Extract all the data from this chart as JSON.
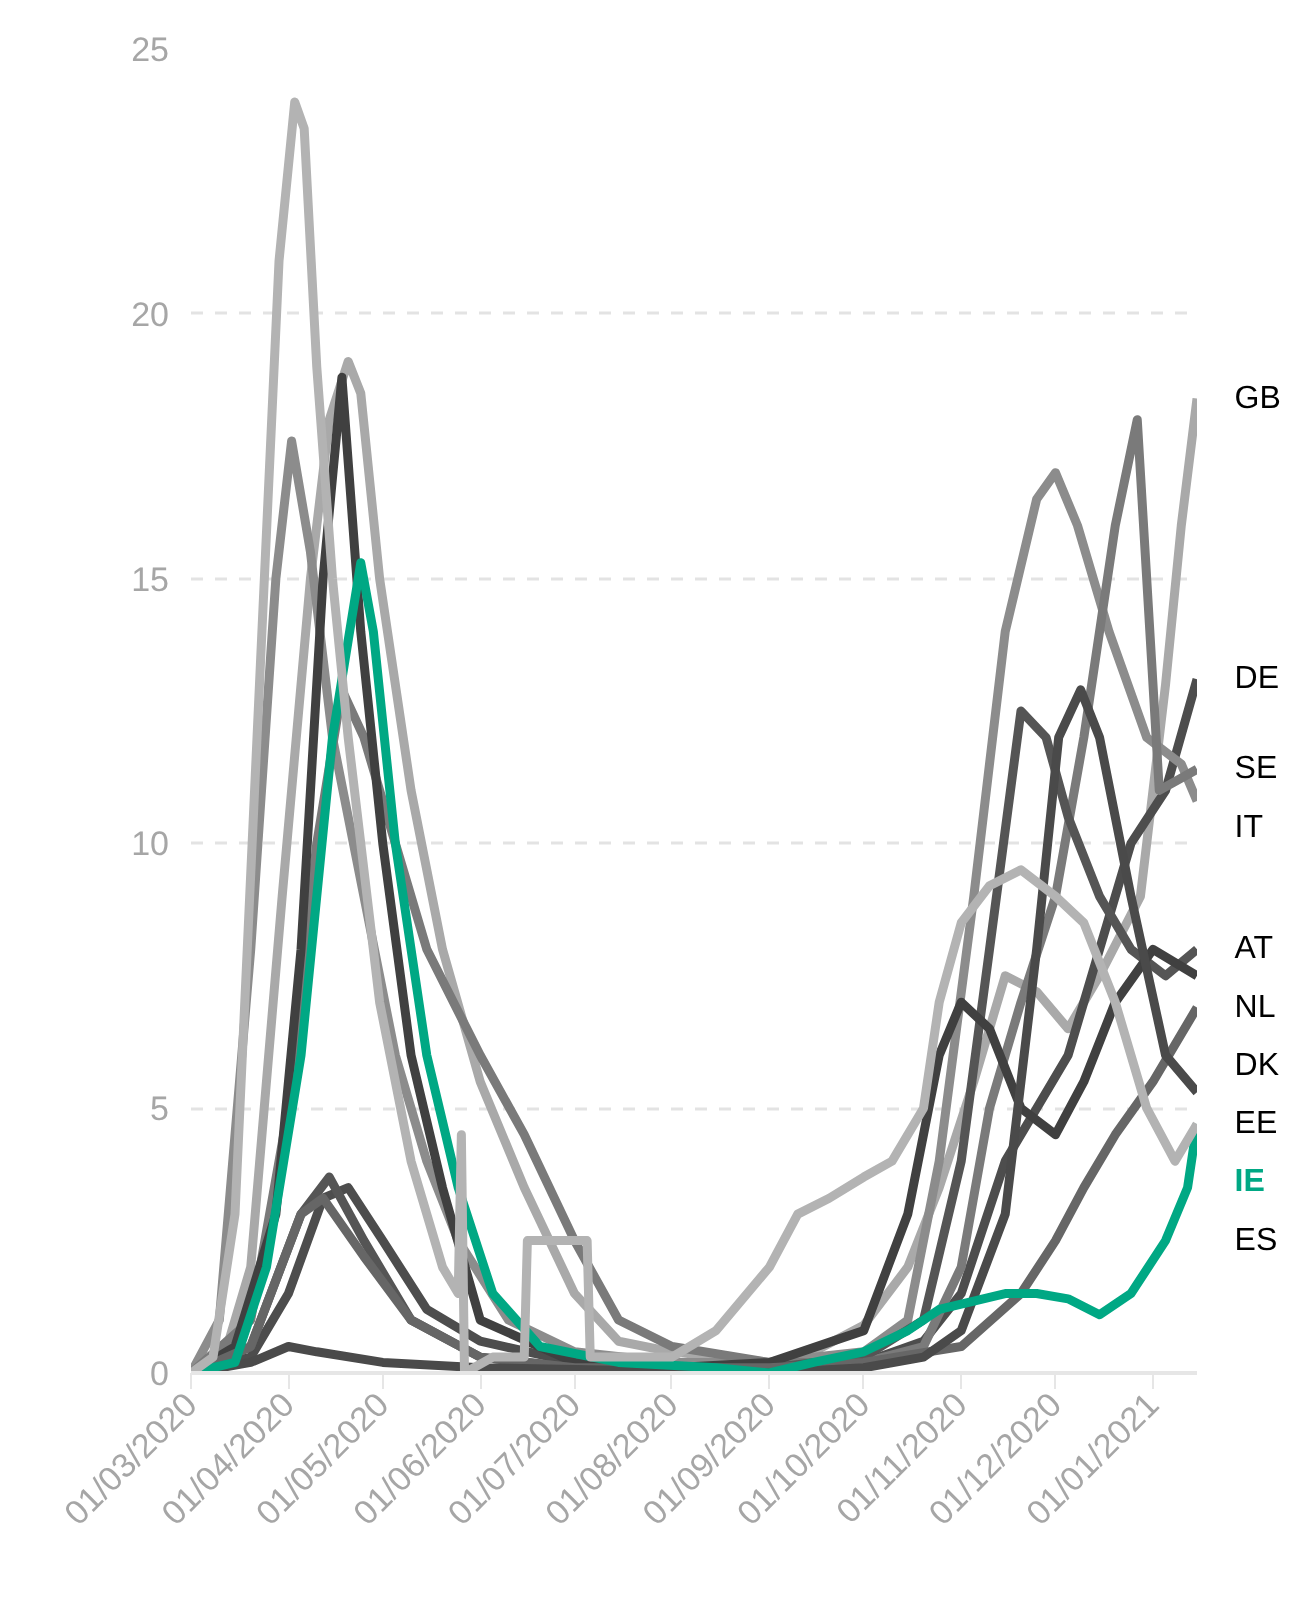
{
  "chart_data": {
    "type": "line",
    "grid": "y",
    "marker": "none",
    "line_style": "solid",
    "xlim": [
      "2020-03-01",
      "2021-01-15"
    ],
    "ylim": [
      0,
      25
    ],
    "yticks": [
      0,
      5,
      10,
      15,
      20,
      25
    ],
    "xticks": [
      {
        "value": "2020-03-01",
        "label": "01/03/2020"
      },
      {
        "value": "2020-04-01",
        "label": "01/04/2020"
      },
      {
        "value": "2020-05-01",
        "label": "01/05/2020"
      },
      {
        "value": "2020-06-01",
        "label": "01/06/2020"
      },
      {
        "value": "2020-07-01",
        "label": "01/07/2020"
      },
      {
        "value": "2020-08-01",
        "label": "01/08/2020"
      },
      {
        "value": "2020-09-01",
        "label": "01/09/2020"
      },
      {
        "value": "2020-10-01",
        "label": "01/10/2020"
      },
      {
        "value": "2020-11-01",
        "label": "01/11/2020"
      },
      {
        "value": "2020-12-01",
        "label": "01/12/2020"
      },
      {
        "value": "2021-01-01",
        "label": "01/01/2021"
      }
    ],
    "series": [
      {
        "name": "GB",
        "color": "#a9a9a9",
        "x": [
          "2020-03-01",
          "2020-03-10",
          "2020-03-20",
          "2020-03-30",
          "2020-04-08",
          "2020-04-14",
          "2020-04-20",
          "2020-04-24",
          "2020-04-30",
          "2020-05-10",
          "2020-05-20",
          "2020-06-01",
          "2020-06-15",
          "2020-07-01",
          "2020-07-15",
          "2020-08-01",
          "2020-09-01",
          "2020-09-15",
          "2020-10-01",
          "2020-10-15",
          "2020-10-25",
          "2020-11-05",
          "2020-11-15",
          "2020-11-25",
          "2020-12-05",
          "2020-12-15",
          "2020-12-28",
          "2021-01-05",
          "2021-01-10",
          "2021-01-15"
        ],
        "values": [
          0,
          0,
          2,
          9,
          15,
          18,
          19.1,
          18.5,
          15,
          11,
          8,
          5.5,
          3.5,
          1.5,
          0.6,
          0.4,
          0.2,
          0.4,
          0.9,
          2,
          3.5,
          5.5,
          7.5,
          7.2,
          6.5,
          7.5,
          9,
          13,
          16,
          18.4
        ]
      },
      {
        "name": "DE",
        "color": "#4d4d4d",
        "x": [
          "2020-03-01",
          "2020-03-20",
          "2020-04-01",
          "2020-04-12",
          "2020-04-20",
          "2020-05-01",
          "2020-05-15",
          "2020-06-01",
          "2020-07-01",
          "2020-08-01",
          "2020-09-01",
          "2020-10-01",
          "2020-10-20",
          "2020-11-01",
          "2020-11-15",
          "2020-11-25",
          "2020-12-05",
          "2020-12-15",
          "2020-12-25",
          "2021-01-05",
          "2021-01-15"
        ],
        "values": [
          0,
          0.3,
          1.5,
          3.3,
          3.5,
          2.5,
          1.2,
          0.6,
          0.2,
          0.1,
          0.1,
          0.2,
          0.6,
          1.5,
          4,
          5,
          6,
          8,
          10,
          11,
          13.1
        ]
      },
      {
        "name": "IT",
        "color": "#8c8c8c",
        "x": [
          "2020-03-01",
          "2020-03-10",
          "2020-03-20",
          "2020-03-28",
          "2020-04-02",
          "2020-04-08",
          "2020-04-15",
          "2020-04-25",
          "2020-05-05",
          "2020-05-15",
          "2020-05-25",
          "2020-06-10",
          "2020-07-01",
          "2020-08-01",
          "2020-09-01",
          "2020-09-15",
          "2020-10-01",
          "2020-10-15",
          "2020-10-25",
          "2020-11-05",
          "2020-11-15",
          "2020-11-25",
          "2020-12-01",
          "2020-12-08",
          "2020-12-18",
          "2020-12-30",
          "2021-01-10",
          "2021-01-15"
        ],
        "values": [
          0,
          1,
          8,
          15,
          17.6,
          15.5,
          12,
          9,
          6,
          4,
          2.5,
          1,
          0.4,
          0.2,
          0.2,
          0.3,
          0.4,
          1,
          4,
          9,
          14,
          16.5,
          17,
          16,
          14,
          12,
          11.5,
          10.8
        ]
      },
      {
        "name": "SE",
        "color": "#7a7a7a",
        "x": [
          "2020-03-01",
          "2020-03-20",
          "2020-04-01",
          "2020-04-10",
          "2020-04-18",
          "2020-04-25",
          "2020-05-05",
          "2020-05-15",
          "2020-06-01",
          "2020-06-15",
          "2020-07-01",
          "2020-07-15",
          "2020-08-01",
          "2020-09-01",
          "2020-10-01",
          "2020-10-20",
          "2020-11-01",
          "2020-11-10",
          "2020-11-20",
          "2020-12-01",
          "2020-12-10",
          "2020-12-20",
          "2020-12-27",
          "2021-01-03",
          "2021-01-15"
        ],
        "values": [
          0,
          1,
          5,
          10,
          12.9,
          12,
          10,
          8,
          6,
          4.5,
          2.5,
          1,
          0.5,
          0.2,
          0.2,
          0.5,
          2,
          5,
          7,
          9,
          12,
          16,
          18,
          11,
          11.4
        ]
      },
      {
        "name": "AT",
        "color": "#555555",
        "x": [
          "2020-03-01",
          "2020-03-20",
          "2020-04-05",
          "2020-04-14",
          "2020-04-25",
          "2020-05-10",
          "2020-06-01",
          "2020-07-01",
          "2020-09-01",
          "2020-10-01",
          "2020-10-20",
          "2020-11-01",
          "2020-11-10",
          "2020-11-20",
          "2020-11-28",
          "2020-12-05",
          "2020-12-15",
          "2020-12-25",
          "2021-01-05",
          "2021-01-15"
        ],
        "values": [
          0,
          0.5,
          3,
          3.7,
          2.5,
          1,
          0.3,
          0.1,
          0.1,
          0.3,
          1,
          4,
          8,
          12.5,
          12,
          10.5,
          9,
          8,
          7.5,
          8
        ]
      },
      {
        "name": "NL",
        "color": "#404040",
        "x": [
          "2020-03-01",
          "2020-03-15",
          "2020-03-28",
          "2020-04-05",
          "2020-04-12",
          "2020-04-18",
          "2020-04-24",
          "2020-05-01",
          "2020-05-10",
          "2020-05-20",
          "2020-06-01",
          "2020-07-01",
          "2020-08-01",
          "2020-09-01",
          "2020-10-01",
          "2020-10-15",
          "2020-10-25",
          "2020-11-01",
          "2020-11-10",
          "2020-11-20",
          "2020-12-01",
          "2020-12-10",
          "2020-12-20",
          "2021-01-01",
          "2021-01-15"
        ],
        "values": [
          0,
          0.5,
          3,
          8,
          15,
          18.8,
          14,
          10,
          6,
          3.5,
          1,
          0.2,
          0.1,
          0.2,
          0.8,
          3,
          6,
          7,
          6.5,
          5,
          4.5,
          5.5,
          7,
          8,
          7.5
        ]
      },
      {
        "name": "DK",
        "color": "#666666",
        "x": [
          "2020-03-01",
          "2020-03-20",
          "2020-04-05",
          "2020-04-12",
          "2020-04-25",
          "2020-05-10",
          "2020-06-01",
          "2020-07-01",
          "2020-09-01",
          "2020-10-01",
          "2020-11-01",
          "2020-11-20",
          "2020-12-01",
          "2020-12-10",
          "2020-12-20",
          "2021-01-01",
          "2021-01-15"
        ],
        "values": [
          0,
          0.5,
          3,
          3.3,
          2.2,
          1,
          0.3,
          0.1,
          0.1,
          0.2,
          0.5,
          1.5,
          2.5,
          3.5,
          4.5,
          5.5,
          6.9
        ]
      },
      {
        "name": "EE",
        "color": "#4a4a4a",
        "x": [
          "2020-03-01",
          "2020-03-20",
          "2020-04-01",
          "2020-04-10",
          "2020-05-01",
          "2020-06-01",
          "2020-09-01",
          "2020-10-01",
          "2020-10-20",
          "2020-11-01",
          "2020-11-15",
          "2020-11-25",
          "2020-12-02",
          "2020-12-09",
          "2020-12-15",
          "2020-12-25",
          "2021-01-05",
          "2021-01-15"
        ],
        "values": [
          0,
          0.2,
          0.5,
          0.4,
          0.2,
          0.1,
          0,
          0.1,
          0.3,
          0.8,
          3,
          8,
          12,
          12.9,
          12,
          9,
          6,
          5.3
        ]
      },
      {
        "name": "IE",
        "color": "#00a884",
        "x": [
          "2020-03-01",
          "2020-03-15",
          "2020-03-25",
          "2020-04-05",
          "2020-04-15",
          "2020-04-24",
          "2020-04-28",
          "2020-05-05",
          "2020-05-15",
          "2020-05-25",
          "2020-06-05",
          "2020-06-20",
          "2020-07-15",
          "2020-08-15",
          "2020-09-01",
          "2020-09-15",
          "2020-10-01",
          "2020-10-15",
          "2020-10-25",
          "2020-11-01",
          "2020-11-15",
          "2020-11-25",
          "2020-12-05",
          "2020-12-15",
          "2020-12-25",
          "2021-01-05",
          "2021-01-12",
          "2021-01-15"
        ],
        "values": [
          0,
          0.2,
          2,
          6,
          12,
          15.3,
          14,
          10,
          6,
          3.5,
          1.5,
          0.5,
          0.2,
          0.1,
          0,
          0.2,
          0.4,
          0.8,
          1.2,
          1.3,
          1.5,
          1.5,
          1.4,
          1.1,
          1.5,
          2.5,
          3.5,
          4.7
        ]
      },
      {
        "name": "ES",
        "color": "#b3b3b3",
        "x": [
          "2020-03-01",
          "2020-03-08",
          "2020-03-15",
          "2020-03-22",
          "2020-03-29",
          "2020-04-03",
          "2020-04-06",
          "2020-04-10",
          "2020-04-15",
          "2020-04-20",
          "2020-04-30",
          "2020-05-10",
          "2020-05-20",
          "2020-05-25",
          "2020-05-26",
          "2020-05-27",
          "2020-06-05",
          "2020-06-15",
          "2020-06-16",
          "2020-07-05",
          "2020-07-06",
          "2020-07-15",
          "2020-08-01",
          "2020-08-15",
          "2020-09-01",
          "2020-09-10",
          "2020-09-20",
          "2020-10-01",
          "2020-10-10",
          "2020-10-20",
          "2020-10-25",
          "2020-11-01",
          "2020-11-10",
          "2020-11-20",
          "2020-12-01",
          "2020-12-10",
          "2020-12-20",
          "2020-12-30",
          "2021-01-08",
          "2021-01-15"
        ],
        "values": [
          0,
          0.3,
          3,
          12,
          21,
          24,
          23.5,
          19,
          15,
          12,
          7,
          4,
          2,
          1.5,
          4.5,
          0,
          0.3,
          0.3,
          2.5,
          2.5,
          0.3,
          0.3,
          0.3,
          0.8,
          2,
          3,
          3.3,
          3.7,
          4,
          5,
          7,
          8.5,
          9.2,
          9.5,
          9,
          8.5,
          7,
          5,
          4,
          4.7
        ]
      }
    ]
  }
}
